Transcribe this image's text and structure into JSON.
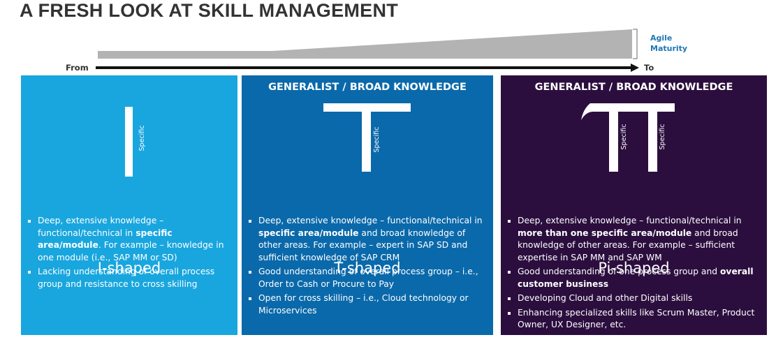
{
  "title": "A FRESH LOOK AT SKILL MANAGEMENT",
  "scale": {
    "label": [
      "Agile",
      "Maturity"
    ],
    "from": "From",
    "to": "To"
  },
  "panels": [
    {
      "header": null,
      "specific": [
        "Specific"
      ],
      "name": "I-shaped",
      "bullets": [
        [
          "Deep, extensive knowledge – functional/technical in ",
          {
            "bold": "specific area/module"
          },
          ". For example – knowledge in one module (i.e., SAP MM or SD)"
        ],
        [
          "Lacking understanding of overall process group and resistance to cross skilling"
        ]
      ]
    },
    {
      "header": "GENERALIST / BROAD KNOWLEDGE",
      "specific": [
        "Specific"
      ],
      "name": "T-shaped",
      "bullets": [
        [
          "Deep, extensive knowledge – functional/technical in ",
          {
            "bold": "specific area/module"
          },
          " and broad knowledge of other areas. For example – expert in SAP SD and sufficient knowledge of SAP CRM"
        ],
        [
          "Good understanding of overall process group – i.e., Order to Cash or Procure to Pay"
        ],
        [
          "Open for cross skilling – i.e., Cloud technology or Microservices"
        ]
      ]
    },
    {
      "header": "GENERALIST / BROAD KNOWLEDGE",
      "specific": [
        "Specific",
        "Specific"
      ],
      "name": "Pi-shaped",
      "bullets": [
        [
          "Deep, extensive knowledge – functional/technical in ",
          {
            "bold": "more than one specific area/module"
          },
          " and broad knowledge of other areas. For example – sufficient expertise in SAP MM and SAP WM"
        ],
        [
          "Good understanding of one process group and ",
          {
            "bold": "overall customer business"
          }
        ],
        [
          "Developing Cloud and other Digital skills"
        ],
        [
          "Enhancing specialized skills like Scrum Master, Product Owner, UX Designer, etc."
        ]
      ]
    }
  ]
}
